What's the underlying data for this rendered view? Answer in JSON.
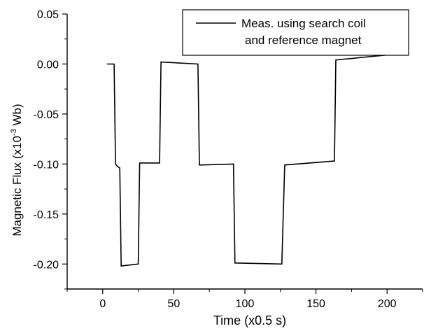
{
  "chart_data": {
    "type": "line",
    "xlabel": "Time (x0.5 s)",
    "ylabel_parts": [
      "Magnetic Flux (x10",
      "-3",
      " Wb)"
    ],
    "xlim": [
      -25,
      225
    ],
    "ylim": [
      -0.225,
      0.05
    ],
    "x_ticks": [
      {
        "value": 0,
        "label": "0"
      },
      {
        "value": 50,
        "label": "50"
      },
      {
        "value": 100,
        "label": "100"
      },
      {
        "value": 150,
        "label": "150"
      },
      {
        "value": 200,
        "label": "200"
      }
    ],
    "y_ticks": [
      {
        "value": 0.05,
        "label": "0.05"
      },
      {
        "value": 0.0,
        "label": "0.00"
      },
      {
        "value": -0.05,
        "label": "-0.05"
      },
      {
        "value": -0.1,
        "label": "-0.10"
      },
      {
        "value": -0.15,
        "label": "-0.15"
      },
      {
        "value": -0.2,
        "label": "-0.20"
      }
    ],
    "legend": {
      "placement": "top-right",
      "lines": [
        "Meas. using search coil",
        "and reference magnet"
      ]
    },
    "series": [
      {
        "name": "Meas. using search coil and reference magnet",
        "color": "#000000",
        "points": [
          [
            3,
            0.0
          ],
          [
            8,
            0.0
          ],
          [
            9,
            -0.1
          ],
          [
            10,
            -0.102
          ],
          [
            12,
            -0.104
          ],
          [
            13,
            -0.202
          ],
          [
            25,
            -0.2
          ],
          [
            26,
            -0.099
          ],
          [
            40,
            -0.099
          ],
          [
            41,
            0.002
          ],
          [
            67,
            0.0
          ],
          [
            68,
            -0.101
          ],
          [
            92,
            -0.1
          ],
          [
            93,
            -0.199
          ],
          [
            126,
            -0.2
          ],
          [
            128,
            -0.101
          ],
          [
            163,
            -0.097
          ],
          [
            164,
            0.004
          ],
          [
            200,
            0.009
          ]
        ]
      }
    ]
  }
}
